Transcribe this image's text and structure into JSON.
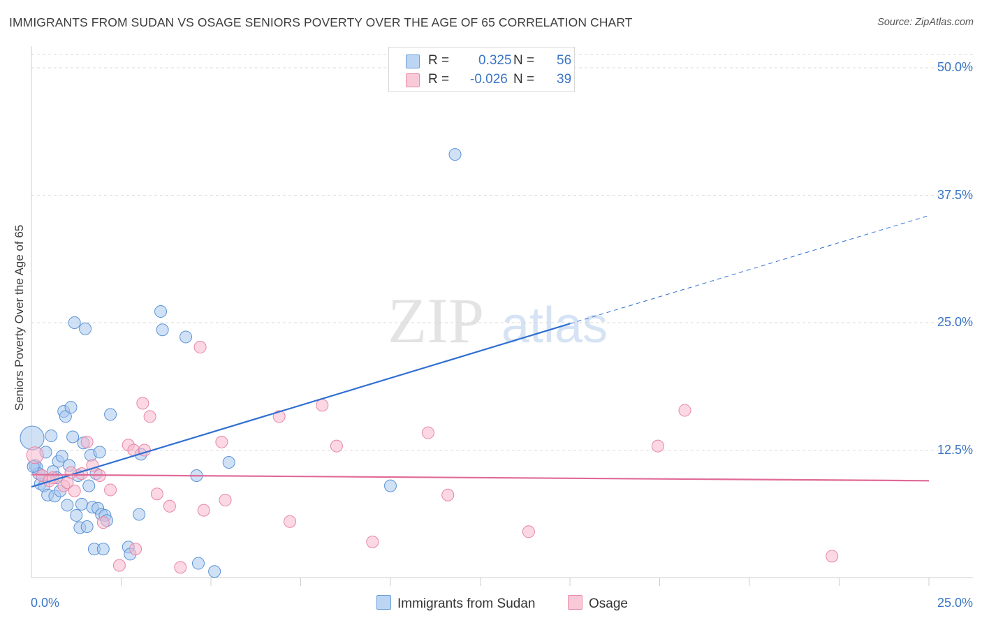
{
  "title": "IMMIGRANTS FROM SUDAN VS OSAGE SENIORS POVERTY OVER THE AGE OF 65 CORRELATION CHART",
  "source": "Source: ZipAtlas.com",
  "watermark": {
    "zip": "ZIP",
    "atlas": "atlas"
  },
  "legend": {
    "rows": [
      {
        "r_label": "R =",
        "r_value": "0.325",
        "n_label": "N =",
        "n_value": "56"
      },
      {
        "r_label": "R =",
        "r_value": "-0.026",
        "n_label": "N =",
        "n_value": "39"
      }
    ]
  },
  "colors": {
    "blue_fill": "#a9c8ef",
    "blue_stroke": "#5b93d6",
    "blue_line": "#2f6fd1",
    "pink_fill": "#f7b8cc",
    "pink_stroke": "#e886a6",
    "pink_line": "#e06a97",
    "tick_text": "#3a75c4",
    "grid": "#d9d9d9"
  },
  "chart_data": {
    "type": "scatter",
    "title": "IMMIGRANTS FROM SUDAN VS OSAGE SENIORS POVERTY OVER THE AGE OF 65 CORRELATION CHART",
    "xlabel": "",
    "ylabel": "Seniors Poverty Over the Age of 65",
    "xlim": [
      0,
      25
    ],
    "ylim": [
      0,
      50
    ],
    "x_tick_labels": [
      "0.0%",
      "25.0%"
    ],
    "y_tick_labels": [
      "12.5%",
      "25.0%",
      "37.5%",
      "50.0%"
    ],
    "y_ticks": [
      12.5,
      25.0,
      37.5,
      50.0
    ],
    "series": [
      {
        "name": "Immigrants from Sudan",
        "color": "blue",
        "r": 0.325,
        "n": 56,
        "trend": {
          "x0": 0.0,
          "y0": 8.9,
          "x1": 15.0,
          "y1": 24.9,
          "dash_to_x": 25.0,
          "dash_to_y": 35.5
        },
        "points": [
          [
            0.02,
            13.7,
            3
          ],
          [
            0.1,
            11.0,
            1
          ],
          [
            0.15,
            10.8,
            1
          ],
          [
            0.2,
            10.2,
            1
          ],
          [
            0.25,
            9.2,
            1
          ],
          [
            0.3,
            10.0,
            1
          ],
          [
            0.35,
            9.0,
            1
          ],
          [
            0.4,
            12.3,
            1
          ],
          [
            0.45,
            8.1,
            1
          ],
          [
            0.55,
            13.9,
            1
          ],
          [
            0.6,
            10.4,
            1
          ],
          [
            0.65,
            8.0,
            1
          ],
          [
            0.7,
            9.8,
            1
          ],
          [
            0.75,
            11.4,
            1
          ],
          [
            0.8,
            8.5,
            1
          ],
          [
            0.85,
            11.9,
            1
          ],
          [
            0.9,
            16.3,
            1
          ],
          [
            0.95,
            15.8,
            1
          ],
          [
            1.0,
            7.1,
            1
          ],
          [
            1.05,
            11.0,
            1
          ],
          [
            1.1,
            16.7,
            1
          ],
          [
            1.15,
            13.8,
            1
          ],
          [
            1.2,
            25.0,
            1
          ],
          [
            1.25,
            6.1,
            1
          ],
          [
            1.3,
            10.0,
            1
          ],
          [
            1.35,
            4.9,
            1
          ],
          [
            1.4,
            7.2,
            1
          ],
          [
            1.45,
            13.2,
            1
          ],
          [
            1.5,
            24.4,
            1
          ],
          [
            1.55,
            5.0,
            1
          ],
          [
            1.6,
            9.0,
            1
          ],
          [
            1.65,
            12.0,
            1
          ],
          [
            1.7,
            6.9,
            1
          ],
          [
            1.75,
            2.8,
            1
          ],
          [
            1.8,
            10.2,
            1
          ],
          [
            1.85,
            6.8,
            1
          ],
          [
            1.9,
            12.3,
            1
          ],
          [
            1.95,
            6.2,
            1
          ],
          [
            2.0,
            2.8,
            1
          ],
          [
            2.05,
            6.1,
            1
          ],
          [
            2.1,
            5.6,
            1
          ],
          [
            2.2,
            16.0,
            1
          ],
          [
            2.7,
            3.0,
            1
          ],
          [
            2.75,
            2.3,
            1
          ],
          [
            3.0,
            6.2,
            1
          ],
          [
            3.05,
            12.1,
            1
          ],
          [
            3.6,
            26.1,
            1
          ],
          [
            3.65,
            24.3,
            1
          ],
          [
            4.3,
            23.6,
            1
          ],
          [
            4.6,
            10.0,
            1
          ],
          [
            4.65,
            1.4,
            1
          ],
          [
            5.1,
            0.6,
            1
          ],
          [
            5.5,
            11.3,
            1
          ],
          [
            10.0,
            9.0,
            1
          ],
          [
            11.8,
            41.5,
            1
          ],
          [
            0.05,
            10.9,
            1
          ]
        ]
      },
      {
        "name": "Osage",
        "color": "pink",
        "r": -0.026,
        "n": 39,
        "trend": {
          "x0": 0.0,
          "y0": 10.1,
          "x1": 25.0,
          "y1": 9.5
        },
        "points": [
          [
            0.1,
            12.0,
            2
          ],
          [
            0.3,
            10.0,
            1
          ],
          [
            0.5,
            9.5,
            1
          ],
          [
            0.9,
            9.0,
            1
          ],
          [
            1.0,
            9.3,
            1
          ],
          [
            1.2,
            8.5,
            1
          ],
          [
            1.4,
            10.2,
            1
          ],
          [
            1.55,
            13.3,
            1
          ],
          [
            1.7,
            11.0,
            1
          ],
          [
            1.9,
            10.0,
            1
          ],
          [
            2.0,
            5.4,
            1
          ],
          [
            2.2,
            8.6,
            1
          ],
          [
            2.45,
            1.2,
            1
          ],
          [
            2.7,
            13.0,
            1
          ],
          [
            2.85,
            12.5,
            1
          ],
          [
            2.9,
            2.8,
            1
          ],
          [
            3.1,
            17.1,
            1
          ],
          [
            3.15,
            12.5,
            1
          ],
          [
            3.3,
            15.8,
            1
          ],
          [
            3.5,
            8.2,
            1
          ],
          [
            3.85,
            7.0,
            1
          ],
          [
            4.15,
            1.0,
            1
          ],
          [
            4.7,
            22.6,
            1
          ],
          [
            4.8,
            6.6,
            1
          ],
          [
            5.3,
            13.3,
            1
          ],
          [
            5.4,
            7.6,
            1
          ],
          [
            6.9,
            15.8,
            1
          ],
          [
            7.2,
            5.5,
            1
          ],
          [
            8.1,
            16.9,
            1
          ],
          [
            8.5,
            12.9,
            1
          ],
          [
            9.5,
            3.5,
            1
          ],
          [
            11.05,
            14.2,
            1
          ],
          [
            11.6,
            8.1,
            1
          ],
          [
            13.85,
            4.5,
            1
          ],
          [
            17.45,
            12.9,
            1
          ],
          [
            18.2,
            16.4,
            1
          ],
          [
            22.3,
            2.1,
            1
          ],
          [
            0.6,
            9.8,
            1
          ],
          [
            1.1,
            10.3,
            1
          ]
        ]
      }
    ]
  }
}
